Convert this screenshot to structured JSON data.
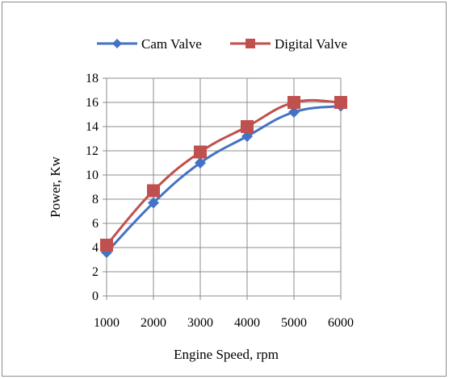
{
  "chart_data": {
    "type": "line",
    "title": "",
    "xlabel": "Engine Speed, rpm",
    "ylabel": "Power, Kw",
    "x": [
      1000,
      2000,
      3000,
      4000,
      5000,
      6000
    ],
    "x_tick_labels": [
      "1000",
      "2000",
      "3000",
      "4000",
      "5000",
      "6000"
    ],
    "y_tick_labels": [
      "0",
      "2",
      "4",
      "6",
      "8",
      "10",
      "12",
      "14",
      "16",
      "18"
    ],
    "ylim": [
      0,
      18
    ],
    "y_step": 2,
    "grid": "horizontal and vertical",
    "legend_position": "top",
    "series": [
      {
        "name": "Cam Valve",
        "values": [
          3.6,
          7.7,
          11.0,
          13.2,
          15.2,
          15.7
        ],
        "color": "#4472C4",
        "marker": "diamond"
      },
      {
        "name": "Digital Valve",
        "values": [
          4.2,
          8.7,
          11.9,
          14.0,
          16.0,
          16.0
        ],
        "color": "#C0504D",
        "marker": "square"
      }
    ]
  }
}
